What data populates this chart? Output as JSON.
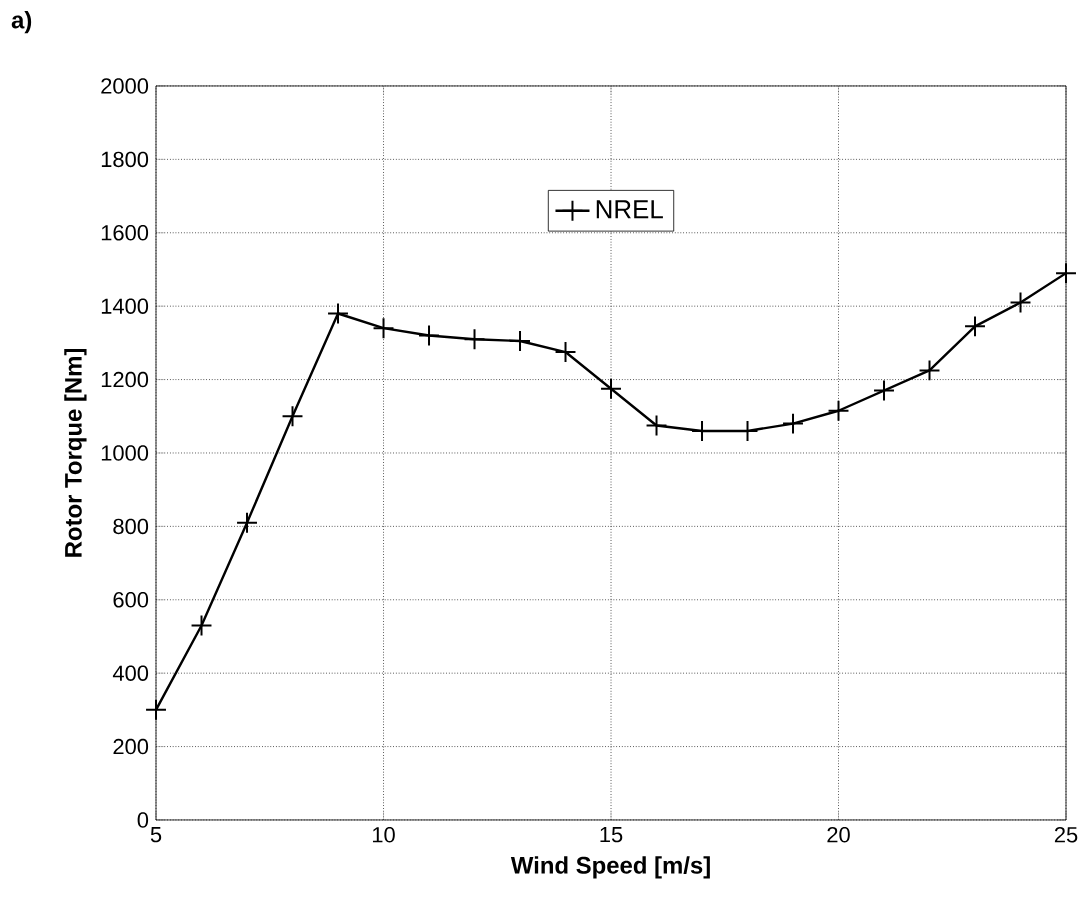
{
  "chart_data": {
    "type": "line",
    "xlabel": "Wind Speed [m/s]",
    "ylabel": "Rotor Torque [Nm]",
    "annotations": [
      "a)"
    ],
    "x": [
      5,
      6,
      7,
      8,
      9,
      10,
      11,
      12,
      13,
      14,
      15,
      16,
      17,
      18,
      19,
      20,
      21,
      22,
      23,
      24,
      25
    ],
    "series": [
      {
        "name": "NREL",
        "color": "#000000",
        "values": [
          300,
          530,
          810,
          1100,
          1380,
          1340,
          1320,
          1310,
          1305,
          1275,
          1175,
          1075,
          1060,
          1060,
          1080,
          1115,
          1170,
          1225,
          1345,
          1410,
          1490
        ]
      }
    ],
    "xlim": [
      5,
      25
    ],
    "xticks": [
      5,
      10,
      15,
      20,
      25
    ],
    "ylim": [
      0,
      2000
    ],
    "yticks": [
      0,
      200,
      400,
      600,
      800,
      1000,
      1200,
      1400,
      1600,
      1800,
      2000
    ],
    "grid": true,
    "legend": "top",
    "marker": "cross",
    "line_style": "solid"
  }
}
